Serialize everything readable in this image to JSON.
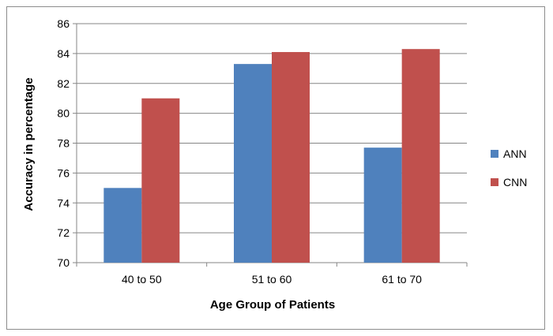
{
  "chart_data": {
    "type": "bar",
    "title": "",
    "xlabel": "Age Group of Patients",
    "ylabel": "Accuracy in percentage",
    "categories": [
      "40 to 50",
      "51 to 60",
      "61 to 70"
    ],
    "series": [
      {
        "name": "ANN",
        "color": "#4f81bd",
        "values": [
          75.0,
          83.3,
          77.7
        ]
      },
      {
        "name": "CNN",
        "color": "#c0504d",
        "values": [
          81.0,
          84.1,
          84.3
        ]
      }
    ],
    "ylim": [
      70,
      86
    ],
    "yticks": [
      "70",
      "72",
      "74",
      "76",
      "78",
      "80",
      "82",
      "84",
      "86"
    ],
    "grid": true,
    "legend_position": "right"
  }
}
